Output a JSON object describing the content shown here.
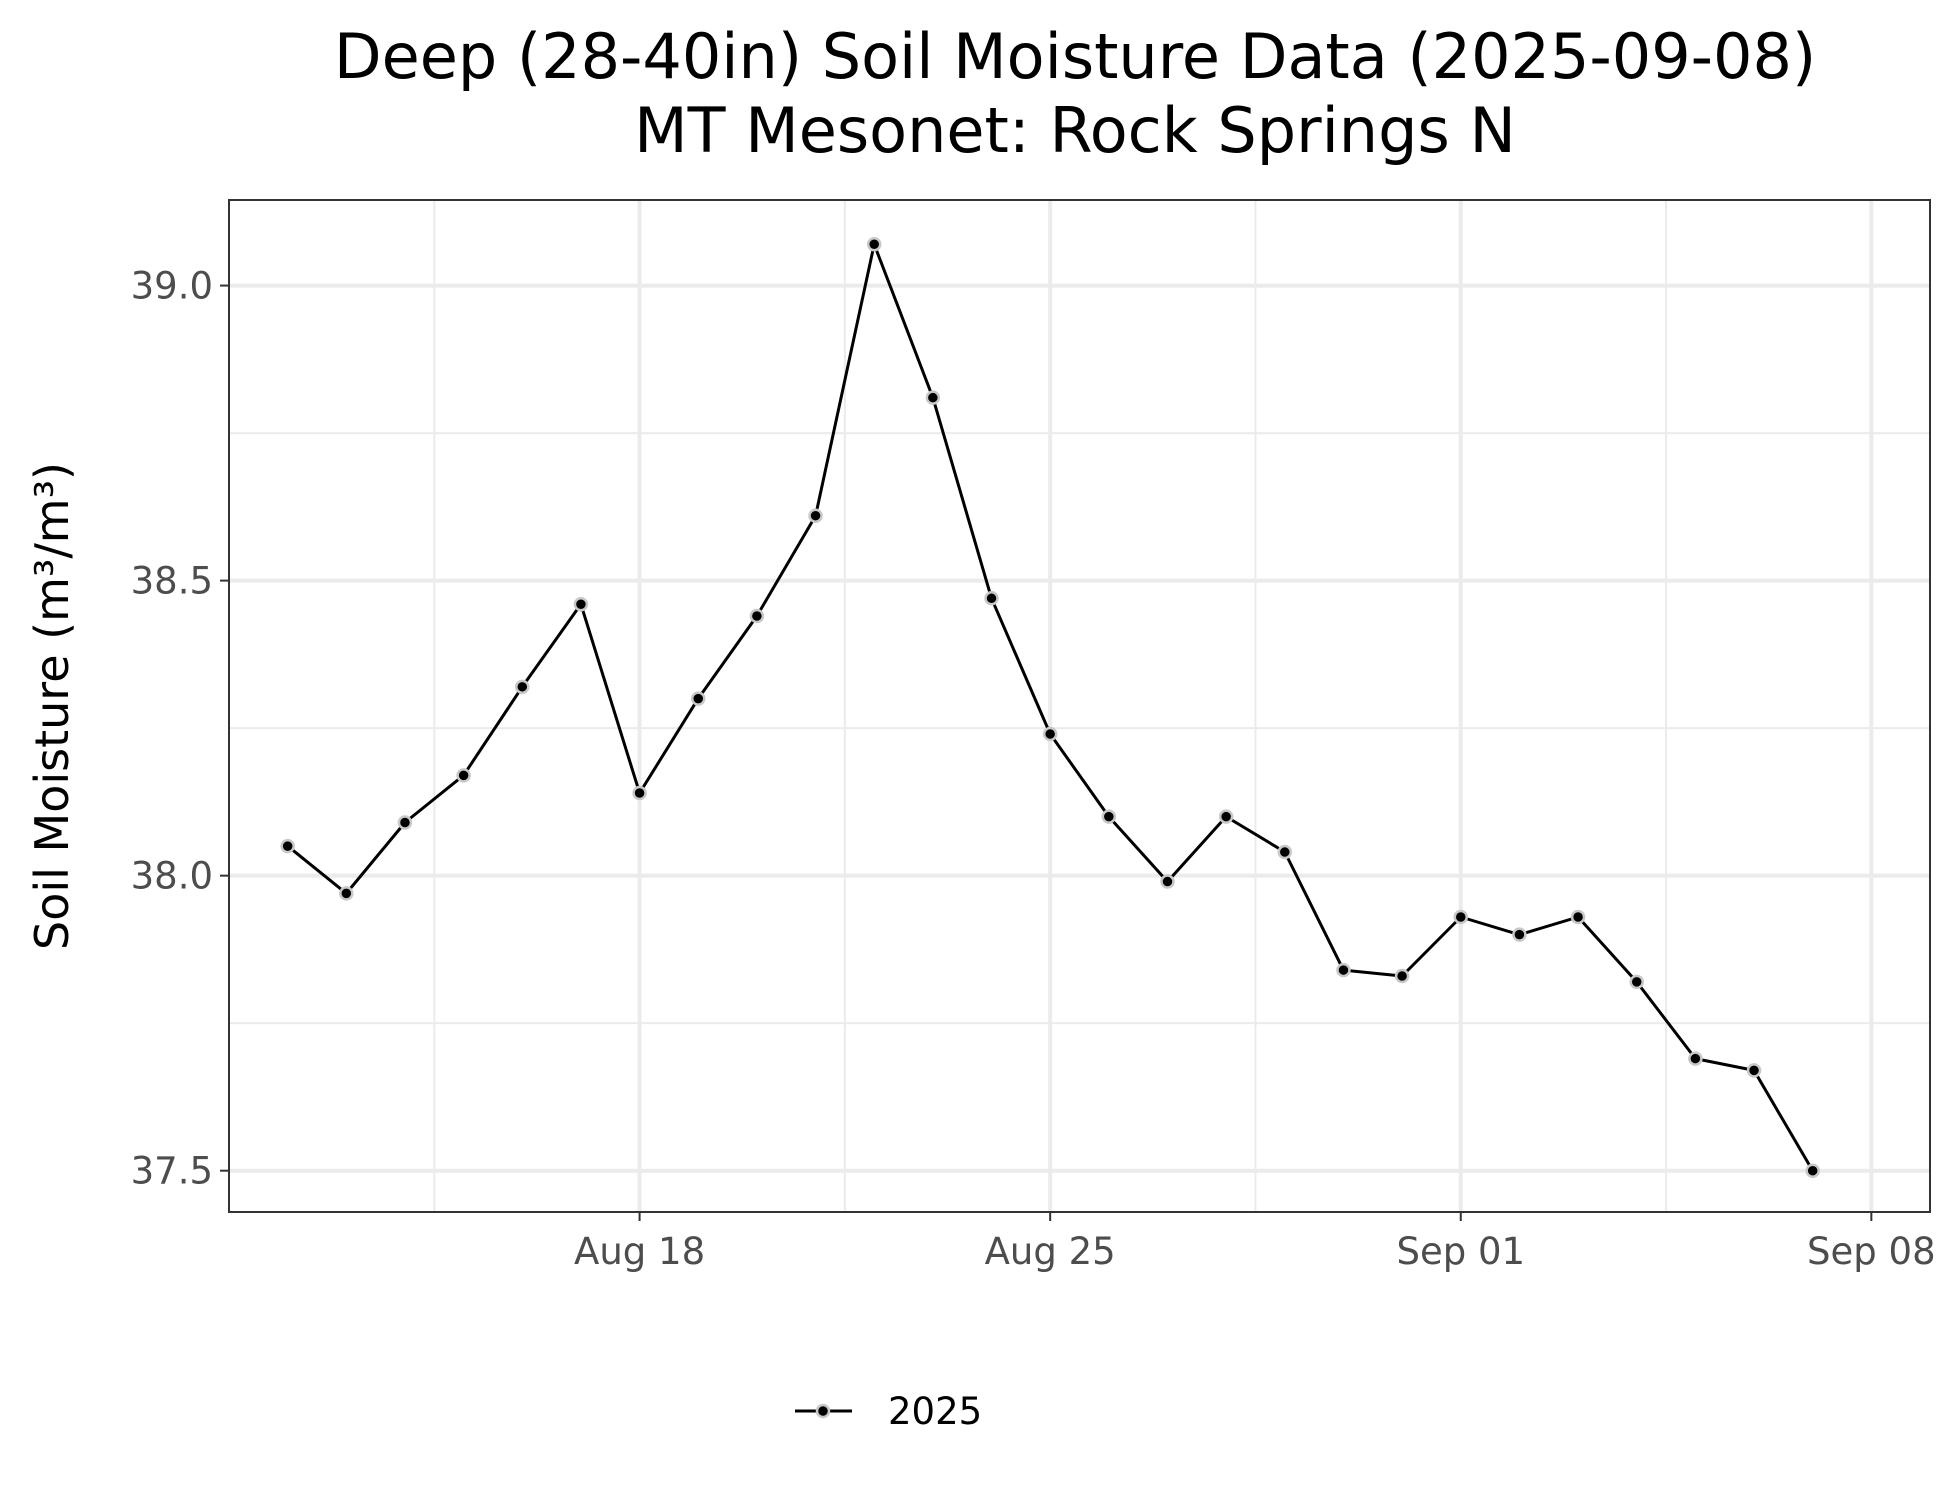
{
  "chart_data": {
    "type": "line",
    "title": "Deep (28-40in) Soil Moisture Data (2025-09-08)",
    "subtitle": "MT Mesonet: Rock Springs N",
    "xlabel": "",
    "ylabel": "Soil Moisture (m³/m³)",
    "ylim": [
      37.43,
      39.145
    ],
    "xlim": [
      "2025-08-11",
      "2025-09-09"
    ],
    "x_ticks": [
      {
        "date": "2025-08-18",
        "label": "Aug 18"
      },
      {
        "date": "2025-08-25",
        "label": "Aug 25"
      },
      {
        "date": "2025-09-01",
        "label": "Sep 01"
      },
      {
        "date": "2025-09-08",
        "label": "Sep 08"
      }
    ],
    "y_ticks": [
      {
        "value": 37.5,
        "label": "37.5"
      },
      {
        "value": 38.0,
        "label": "38.0"
      },
      {
        "value": 38.5,
        "label": "38.5"
      },
      {
        "value": 39.0,
        "label": "39.0"
      }
    ],
    "grid": true,
    "legend_position": "bottom",
    "series": [
      {
        "name": "2025",
        "color": "#000000",
        "point_outline_color": "#c8c8c8",
        "points": [
          {
            "x": "2025-08-12",
            "y": 38.05
          },
          {
            "x": "2025-08-13",
            "y": 37.97
          },
          {
            "x": "2025-08-14",
            "y": 38.09
          },
          {
            "x": "2025-08-15",
            "y": 38.17
          },
          {
            "x": "2025-08-16",
            "y": 38.32
          },
          {
            "x": "2025-08-17",
            "y": 38.46
          },
          {
            "x": "2025-08-18",
            "y": 38.14
          },
          {
            "x": "2025-08-19",
            "y": 38.3
          },
          {
            "x": "2025-08-20",
            "y": 38.44
          },
          {
            "x": "2025-08-21",
            "y": 38.61
          },
          {
            "x": "2025-08-22",
            "y": 39.07
          },
          {
            "x": "2025-08-23",
            "y": 38.81
          },
          {
            "x": "2025-08-24",
            "y": 38.47
          },
          {
            "x": "2025-08-25",
            "y": 38.24
          },
          {
            "x": "2025-08-26",
            "y": 38.1
          },
          {
            "x": "2025-08-27",
            "y": 37.99
          },
          {
            "x": "2025-08-28",
            "y": 38.1
          },
          {
            "x": "2025-08-29",
            "y": 38.04
          },
          {
            "x": "2025-08-30",
            "y": 37.84
          },
          {
            "x": "2025-08-31",
            "y": 37.83
          },
          {
            "x": "2025-09-01",
            "y": 37.93
          },
          {
            "x": "2025-09-02",
            "y": 37.9
          },
          {
            "x": "2025-09-03",
            "y": 37.93
          },
          {
            "x": "2025-09-04",
            "y": 37.82
          },
          {
            "x": "2025-09-05",
            "y": 37.69
          },
          {
            "x": "2025-09-06",
            "y": 37.67
          },
          {
            "x": "2025-09-07",
            "y": 37.5
          }
        ]
      }
    ]
  }
}
